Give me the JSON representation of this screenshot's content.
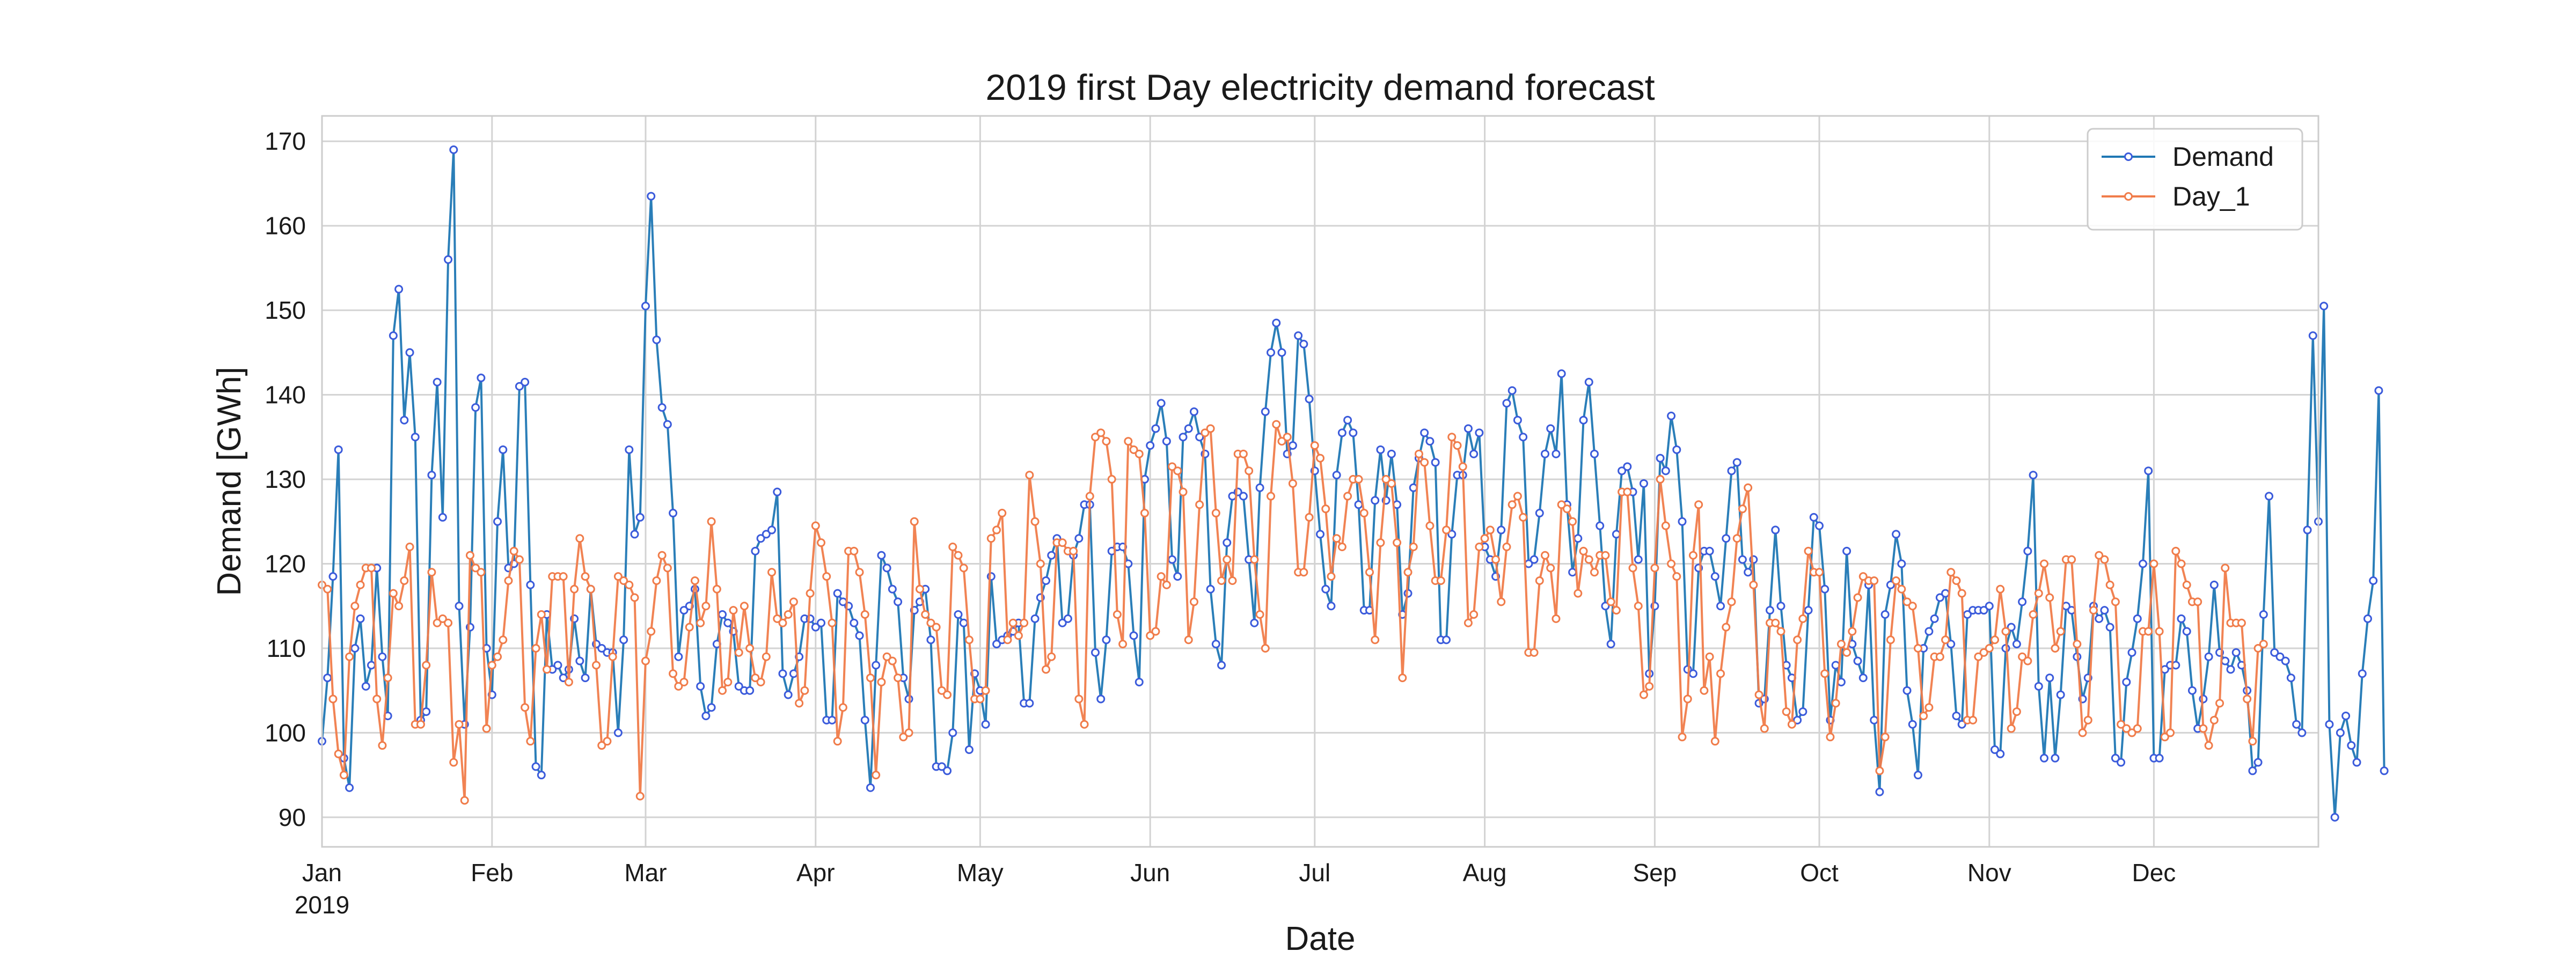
{
  "chart_data": {
    "type": "line",
    "title": "2019 first Day electricity demand forecast",
    "xlabel": "Date",
    "ylabel": "Demand [GWh]",
    "xlim": [
      "2019-01-01",
      "2019-12-31"
    ],
    "ylim": [
      86.5,
      173
    ],
    "yticks": [
      90,
      100,
      110,
      120,
      130,
      140,
      150,
      160,
      170
    ],
    "xticks": [
      {
        "date": "2019-01-01",
        "label": "Jan",
        "sublabel": "2019"
      },
      {
        "date": "2019-02-01",
        "label": "Feb",
        "sublabel": ""
      },
      {
        "date": "2019-03-01",
        "label": "Mar",
        "sublabel": ""
      },
      {
        "date": "2019-04-01",
        "label": "Apr",
        "sublabel": ""
      },
      {
        "date": "2019-05-01",
        "label": "May",
        "sublabel": ""
      },
      {
        "date": "2019-06-01",
        "label": "Jun",
        "sublabel": ""
      },
      {
        "date": "2019-07-01",
        "label": "Jul",
        "sublabel": ""
      },
      {
        "date": "2019-08-01",
        "label": "Aug",
        "sublabel": ""
      },
      {
        "date": "2019-09-01",
        "label": "Sep",
        "sublabel": ""
      },
      {
        "date": "2019-10-01",
        "label": "Oct",
        "sublabel": ""
      },
      {
        "date": "2019-11-01",
        "label": "Nov",
        "sublabel": ""
      },
      {
        "date": "2019-12-01",
        "label": "Dec",
        "sublabel": ""
      }
    ],
    "grid": true,
    "legend_position": "top-right",
    "series": [
      {
        "name": "Demand",
        "color": "#1f77b4",
        "marker_edge": "#3b5bdb",
        "x_start": "2019-01-01",
        "x_step_days": 1,
        "values": [
          99,
          106.5,
          118.5,
          133.5,
          97,
          93.5,
          110,
          113.5,
          105.5,
          108,
          119.5,
          109,
          102,
          147,
          152.5,
          137,
          145,
          135,
          101.5,
          102.5,
          130.5,
          141.5,
          125.5,
          156,
          169,
          115,
          101,
          112.5,
          138.5,
          142,
          110,
          104.5,
          125,
          133.5,
          119.5,
          120,
          141,
          141.5,
          117.5,
          96,
          95,
          114,
          107.5,
          108,
          106.5,
          107.5,
          113.5,
          108.5,
          106.5,
          117,
          110.5,
          110,
          109.5,
          109.5,
          100,
          111,
          133.5,
          123.5,
          125.5,
          150.5,
          163.5,
          146.5,
          138.5,
          136.5,
          126,
          109,
          114.5,
          115,
          117,
          105.5,
          102,
          103,
          110.5,
          114,
          113,
          112,
          105.5,
          105,
          105,
          121.5,
          123,
          123.5,
          124,
          128.5,
          107,
          104.5,
          107,
          109,
          113.5,
          113.5,
          112.5,
          113,
          101.5,
          101.5,
          116.5,
          115.5,
          115,
          113,
          111.5,
          101.5,
          93.5,
          108,
          121,
          119.5,
          117,
          115.5,
          106.5,
          104,
          114.5,
          115.5,
          117,
          111,
          96,
          96,
          95.5,
          100,
          114,
          113,
          98,
          107,
          105,
          101,
          118.5,
          110.5,
          111,
          111.5,
          112,
          113,
          103.5,
          103.5,
          113.5,
          116,
          118,
          121,
          123,
          113,
          113.5,
          121,
          123,
          127,
          127,
          109.5,
          104,
          111,
          121.5,
          122,
          122,
          120,
          111.5,
          106,
          130,
          134,
          136,
          139,
          134.5,
          120.5,
          118.5,
          135,
          136,
          138,
          135,
          133,
          117,
          110.5,
          108,
          122.5,
          128,
          128.5,
          128,
          120.5,
          113,
          129,
          138,
          145,
          148.5,
          145,
          133,
          134,
          147,
          146,
          139.5,
          131,
          123.5,
          117,
          115,
          130.5,
          135.5,
          137,
          135.5,
          127,
          114.5,
          114.5,
          127.5,
          133.5,
          127.5,
          133,
          127,
          114,
          116.5,
          129,
          132.5,
          135.5,
          134.5,
          132,
          111,
          111,
          123.5,
          130.5,
          130.5,
          136,
          133,
          135.5,
          122,
          120.5,
          118.5,
          124,
          139,
          140.5,
          137,
          135,
          120,
          120.5,
          126,
          133,
          136,
          133,
          142.5,
          127,
          119,
          123,
          137,
          141.5,
          133,
          124.5,
          115,
          110.5,
          123.5,
          131,
          131.5,
          128.5,
          120.5,
          129.5,
          107,
          115,
          132.5,
          131,
          137.5,
          133.5,
          125,
          107.5,
          107,
          119.5,
          121.5,
          121.5,
          118.5,
          115,
          123,
          131,
          132,
          120.5,
          119,
          120.5,
          103.5,
          104,
          114.5,
          124,
          115,
          108,
          106.5,
          101.5,
          102.5,
          114.5,
          125.5,
          124.5,
          117,
          101.5,
          108,
          106,
          121.5,
          110.5,
          108.5,
          106.5,
          117.5,
          101.5,
          93,
          114,
          117.5,
          123.5,
          120,
          105,
          101,
          95,
          110,
          112,
          113.5,
          116,
          116.5,
          110.5,
          102,
          101,
          114,
          114.5,
          114.5,
          114.5,
          115,
          98,
          97.5,
          110,
          112.5,
          110.5,
          115.5,
          121.5,
          130.5,
          105.5,
          97,
          106.5,
          97,
          104.5,
          115,
          114.5,
          109,
          104,
          106.5,
          115,
          113.5,
          114.5,
          112.5,
          97,
          96.5,
          106,
          109.5,
          113.5,
          120,
          131,
          97,
          97,
          107.5,
          108,
          108,
          113.5,
          112,
          105,
          100.5,
          104,
          109,
          117.5,
          109.5,
          108.5,
          107.5,
          109.5,
          108,
          105,
          95.5,
          96.5,
          114,
          128,
          109.5,
          109,
          108.5,
          106.5,
          101,
          100,
          124,
          147,
          125,
          150.5,
          101,
          90,
          100,
          102,
          98.5,
          96.5,
          107,
          113.5,
          118,
          140.5,
          95.5
        ]
      },
      {
        "name": "Day_1",
        "color": "#f07c4a",
        "marker_edge": "#f07c4a",
        "x_start": "2019-01-01",
        "x_step_days": 1,
        "values": [
          117.5,
          117,
          104,
          97.5,
          95,
          109,
          115,
          117.5,
          119.5,
          119.5,
          104,
          98.5,
          106.5,
          116.5,
          115,
          118,
          122,
          101,
          101,
          108,
          119,
          113,
          113.5,
          113,
          96.5,
          101,
          92,
          121,
          119.5,
          119,
          100.5,
          108,
          109,
          111,
          118,
          121.5,
          120.5,
          103,
          99,
          110,
          114,
          107.5,
          118.5,
          118.5,
          118.5,
          106,
          117,
          123,
          118.5,
          117,
          108,
          98.5,
          99,
          109,
          118.5,
          118,
          117.5,
          116,
          92.5,
          108.5,
          112,
          118,
          121,
          119.5,
          107,
          105.5,
          106,
          112.5,
          118,
          113,
          115,
          125,
          117,
          105,
          106,
          114.5,
          109.5,
          115,
          110,
          106.5,
          106,
          109,
          119,
          113.5,
          113,
          114,
          115.5,
          103.5,
          105,
          116.5,
          124.5,
          122.5,
          118.5,
          113,
          99,
          103,
          121.5,
          121.5,
          119,
          114,
          106.5,
          95,
          106,
          109,
          108.5,
          106.5,
          99.5,
          100,
          125,
          117,
          114,
          113,
          112.5,
          105,
          104.5,
          122,
          121,
          119.5,
          111,
          104,
          104,
          105,
          123,
          124,
          126,
          111,
          113,
          111.5,
          113,
          130.5,
          125,
          120,
          107.5,
          109,
          122.5,
          122.5,
          121.5,
          121.5,
          104,
          101,
          128,
          135,
          135.5,
          134.5,
          130,
          114,
          110.5,
          134.5,
          133.5,
          133,
          126,
          111.5,
          112,
          118.5,
          117.5,
          131.5,
          131,
          128.5,
          111,
          115.5,
          127,
          135.5,
          136,
          126,
          118,
          120.5,
          118,
          133,
          133,
          131,
          120.5,
          114,
          110,
          128,
          136.5,
          134.5,
          135,
          129.5,
          119,
          119,
          125.5,
          134,
          132.5,
          126.5,
          118.5,
          123,
          122,
          128,
          130,
          130,
          126,
          119,
          111,
          122.5,
          130,
          129.5,
          122.5,
          106.5,
          119,
          122,
          133,
          132,
          124.5,
          118,
          118,
          124,
          135,
          134,
          131.5,
          113,
          114,
          122,
          123,
          124,
          120.5,
          115.5,
          122,
          127,
          128,
          125.5,
          109.5,
          109.5,
          118,
          121,
          119.5,
          113.5,
          127,
          126.5,
          125,
          116.5,
          121.5,
          120.5,
          119,
          121,
          121,
          115.5,
          114.5,
          128.5,
          128.5,
          119.5,
          115,
          104.5,
          105.5,
          119.5,
          130,
          124.5,
          120,
          118.5,
          99.5,
          104,
          121,
          127,
          105,
          109,
          99,
          107,
          112.5,
          115.5,
          123,
          126.5,
          129,
          117.5,
          104.5,
          100.5,
          113,
          113,
          112,
          102.5,
          101,
          111,
          113.5,
          121.5,
          119,
          119,
          107,
          99.5,
          103.5,
          110.5,
          109.5,
          112,
          116,
          118.5,
          118,
          118,
          95.5,
          99.5,
          111,
          118,
          117,
          115.5,
          115,
          110,
          102,
          103,
          109,
          109,
          111,
          119,
          118,
          116.5,
          101.5,
          101.5,
          109,
          109.5,
          110,
          111,
          117,
          112,
          100.5,
          102.5,
          109,
          108.5,
          114,
          116.5,
          120,
          116,
          110,
          112,
          120.5,
          120.5,
          110.5,
          100,
          101.5,
          114.5,
          121,
          120.5,
          117.5,
          115.5,
          101,
          100.5,
          100,
          100.5,
          112,
          112,
          120,
          112,
          99.5,
          100,
          121.5,
          120,
          117.5,
          115.5,
          115.5,
          100.5,
          98.5,
          101.5,
          103.5,
          119.5,
          113,
          113,
          113,
          104,
          99,
          110,
          110.5
        ]
      }
    ]
  }
}
